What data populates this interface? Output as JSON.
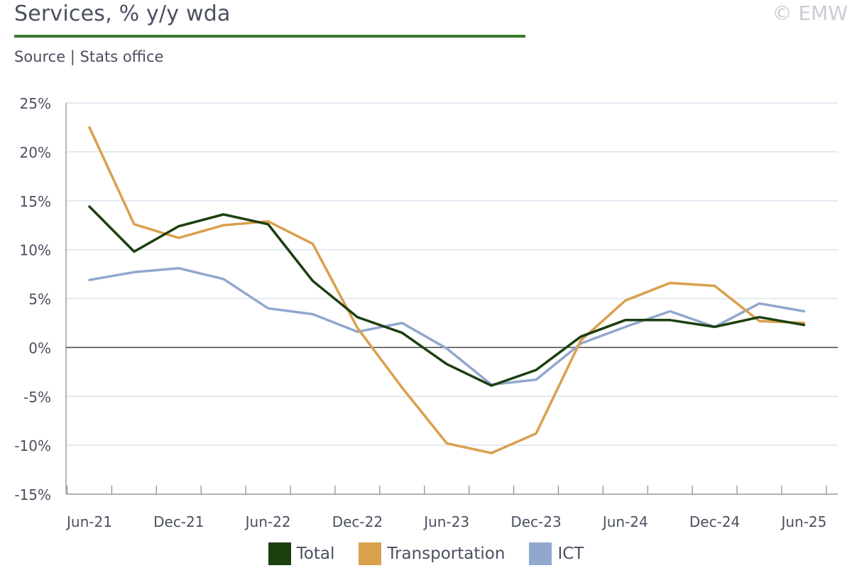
{
  "header": {
    "title": "Services, % y/y wda",
    "copyright": "© EMW",
    "source": "Source | Stats office"
  },
  "colors": {
    "title_rule": "#3a7a2e",
    "grid": "#d9e3ee",
    "axis": "#444444"
  },
  "chart_data": {
    "type": "line",
    "title": "Services, % y/y wda",
    "categories": [
      "Jun-21",
      "Sep-21",
      "Dec-21",
      "Mar-22",
      "Jun-22",
      "Sep-22",
      "Dec-22",
      "Mar-23",
      "Jun-23",
      "Sep-23",
      "Dec-23",
      "Mar-24",
      "Jun-24",
      "Sep-24",
      "Dec-24",
      "Mar-25",
      "Jun-25"
    ],
    "x_tick_labels": [
      "Jun-21",
      "Dec-21",
      "Jun-22",
      "Dec-22",
      "Jun-23",
      "Dec-23",
      "Jun-24",
      "Dec-24",
      "Jun-25"
    ],
    "y_tick_labels": [
      "25%",
      "20%",
      "15%",
      "10%",
      "5%",
      "0%",
      "-5%",
      "-10%",
      "-15%"
    ],
    "ylim": [
      -15,
      25
    ],
    "y_ticks": [
      25,
      20,
      15,
      10,
      5,
      0,
      -5,
      -10,
      -15
    ],
    "grid": true,
    "legend_position": "bottom",
    "series": [
      {
        "name": "Total",
        "color": "#1c3f10",
        "values": [
          14.4,
          9.8,
          12.4,
          13.6,
          12.6,
          6.8,
          3.1,
          1.5,
          -1.7,
          -3.9,
          -2.3,
          1.1,
          2.8,
          2.8,
          2.1,
          3.1,
          2.3
        ]
      },
      {
        "name": "Transportation",
        "color": "#d9a04e",
        "values": [
          22.5,
          12.6,
          11.2,
          12.5,
          12.9,
          10.6,
          2.0,
          -4.1,
          -9.8,
          -10.8,
          -8.8,
          0.7,
          4.8,
          6.6,
          6.3,
          2.7,
          2.5
        ]
      },
      {
        "name": "ICT",
        "color": "#92a7ce",
        "values": [
          6.9,
          7.7,
          8.1,
          7.0,
          4.0,
          3.4,
          1.6,
          2.5,
          -0.1,
          -3.8,
          -3.3,
          0.4,
          2.1,
          3.7,
          2.1,
          4.5,
          3.7
        ]
      }
    ]
  }
}
